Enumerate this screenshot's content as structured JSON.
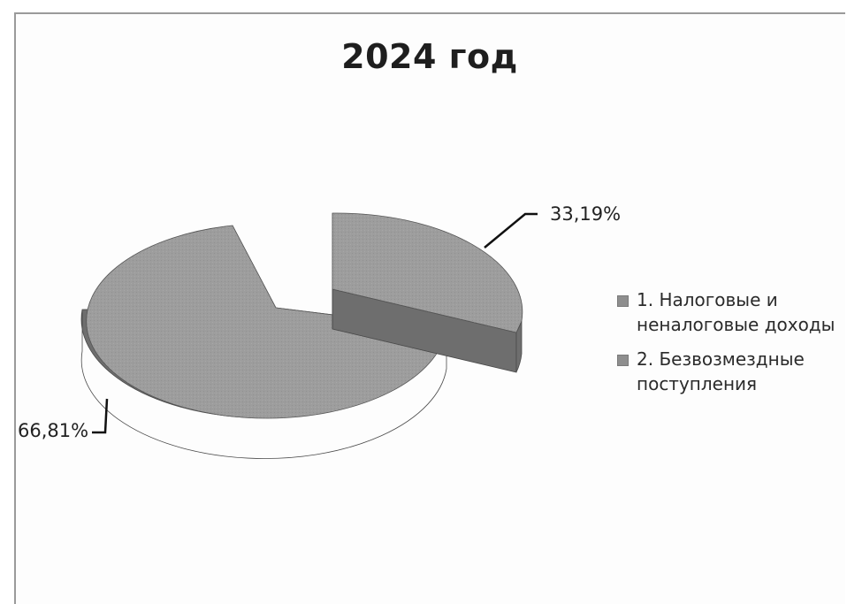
{
  "chart_data": {
    "type": "pie",
    "title": "2024 год",
    "slices": [
      {
        "label": "1. Налоговые и неналоговые доходы",
        "value": 33.19,
        "value_label": "33,19%",
        "exploded": true
      },
      {
        "label": "2. Безвозмездные поступления",
        "value": 66.81,
        "value_label": "66,81%",
        "exploded": false
      }
    ],
    "legend_position": "right",
    "colors": {
      "slice_top": "#9d9d9d",
      "slice_side": "#6e6e6e",
      "legend_swatch": "#8e8e8e"
    }
  }
}
